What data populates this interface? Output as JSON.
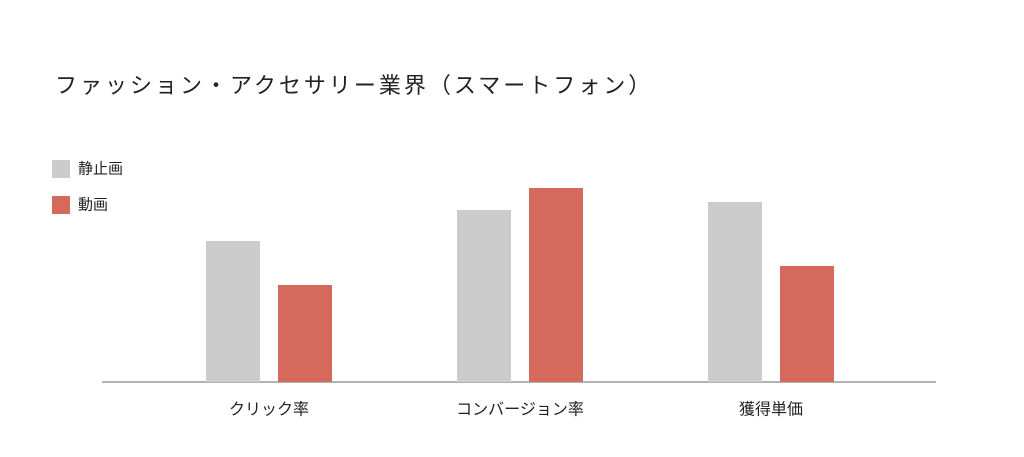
{
  "chart_data": {
    "type": "bar",
    "title": "ファッション・アクセサリー業界（スマートフォン）",
    "categories": [
      "クリック率",
      "コンバージョン率",
      "獲得単価"
    ],
    "series": [
      {
        "name": "静止画",
        "color": "#cccccc",
        "values": [
          141,
          172,
          180
        ]
      },
      {
        "name": "動画",
        "color": "#d4695c",
        "values": [
          97,
          194,
          116
        ]
      }
    ],
    "ylim": [
      0,
      250
    ]
  }
}
